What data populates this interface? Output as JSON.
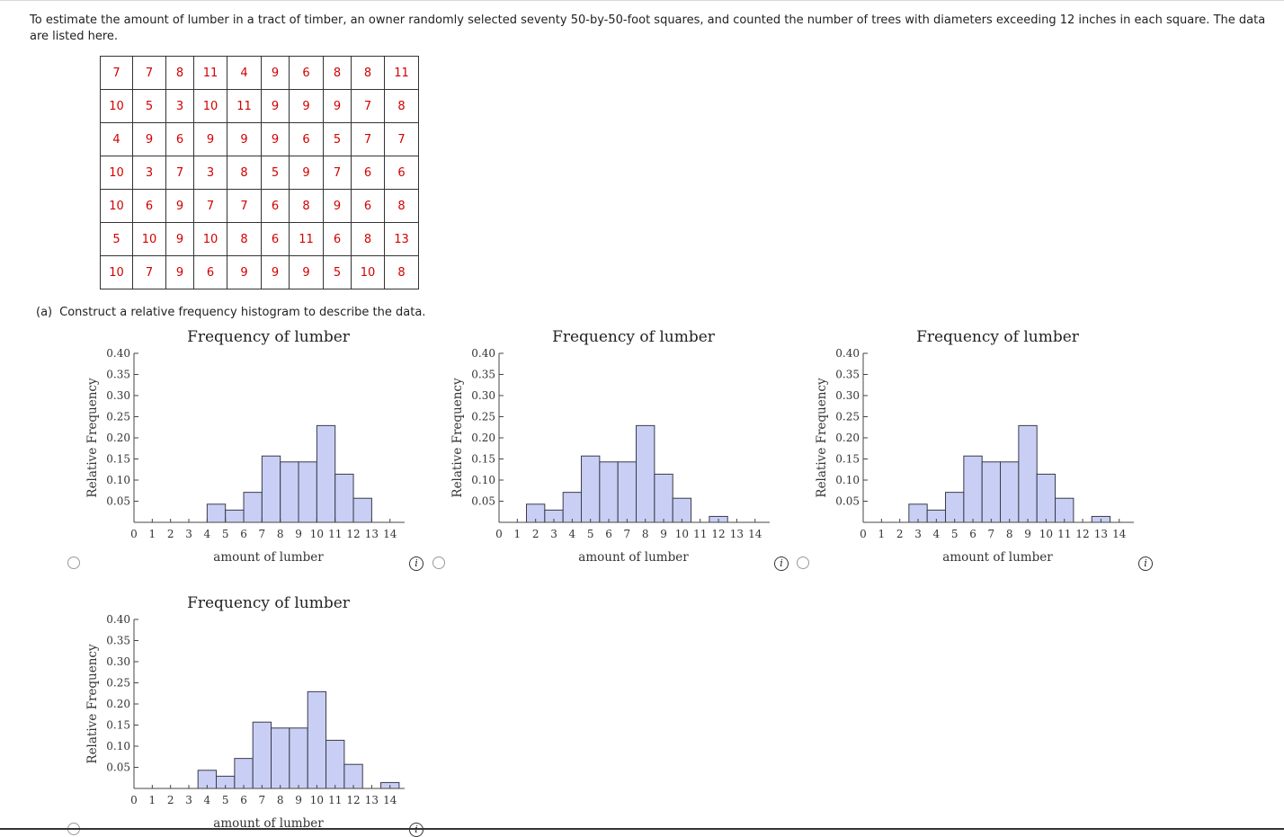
{
  "problem": {
    "intro": "To estimate the amount of lumber in a tract of timber, an owner randomly selected seventy 50-by-50-foot squares, and counted the number of trees with diameters exceeding 12 inches in each square. The data are listed here.",
    "table": [
      [
        "7",
        "7",
        "8",
        "11",
        "4",
        "9",
        "6",
        "8",
        "8",
        "11"
      ],
      [
        "10",
        "5",
        "3",
        "10",
        "11",
        "9",
        "9",
        "9",
        "7",
        "8"
      ],
      [
        "4",
        "9",
        "6",
        "9",
        "9",
        "9",
        "6",
        "5",
        "7",
        "7"
      ],
      [
        "10",
        "3",
        "7",
        "3",
        "8",
        "5",
        "9",
        "7",
        "6",
        "6"
      ],
      [
        "10",
        "6",
        "9",
        "7",
        "7",
        "6",
        "8",
        "9",
        "6",
        "8"
      ],
      [
        "5",
        "10",
        "9",
        "10",
        "8",
        "6",
        "11",
        "6",
        "8",
        "13"
      ],
      [
        "10",
        "7",
        "9",
        "6",
        "9",
        "9",
        "9",
        "5",
        "10",
        "8"
      ]
    ],
    "data_color": "#d30000"
  },
  "part_a": {
    "label": "(a)",
    "prompt": "Construct a relative frequency histogram to describe the data."
  },
  "options": [
    {
      "title": "Frequency of lumber",
      "xlabel": "amount of lumber",
      "ylabel": "Relative Frequency",
      "info_icon": "info-icon",
      "selected": false
    },
    {
      "title": "Frequency of lumber",
      "xlabel": "amount of lumber",
      "ylabel": "Relative Frequency",
      "info_icon": "info-icon",
      "selected": false
    },
    {
      "title": "Frequency of lumber",
      "xlabel": "amount of lumber",
      "ylabel": "Relative Frequency",
      "info_icon": "info-icon",
      "selected": false
    },
    {
      "title": "Frequency of lumber",
      "xlabel": "amount of lumber",
      "ylabel": "Relative Frequency",
      "info_icon": "info-icon",
      "selected": false
    }
  ],
  "chart_data": [
    {
      "type": "bar",
      "title": "Frequency of lumber",
      "xlabel": "amount of lumber",
      "ylabel": "Relative Frequency",
      "xlim": [
        0,
        14.8
      ],
      "ylim": [
        0,
        0.4
      ],
      "xticks": [
        0,
        1,
        2,
        3,
        4,
        5,
        6,
        7,
        8,
        9,
        10,
        11,
        12,
        13,
        14
      ],
      "yticks": [
        0.05,
        0.1,
        0.15,
        0.2,
        0.25,
        0.3,
        0.35,
        0.4
      ],
      "ytick_labels": [
        "0.05",
        "0.10",
        "0.15",
        "0.20",
        "0.25",
        "0.30",
        "0.35",
        "0.40"
      ],
      "bins": [
        4,
        5,
        6,
        7,
        8,
        9,
        10,
        11,
        12,
        13
      ],
      "values": [
        0.043,
        0.029,
        0.071,
        0.157,
        0.143,
        0.143,
        0.229,
        0.114,
        0.057,
        0
      ]
    },
    {
      "type": "bar",
      "title": "Frequency of lumber",
      "xlabel": "amount of lumber",
      "ylabel": "Relative Frequency",
      "xlim": [
        0,
        14.8
      ],
      "ylim": [
        0,
        0.4
      ],
      "xticks": [
        0,
        1,
        2,
        3,
        4,
        5,
        6,
        7,
        8,
        9,
        10,
        11,
        12,
        13,
        14
      ],
      "yticks": [
        0.05,
        0.1,
        0.15,
        0.2,
        0.25,
        0.3,
        0.35,
        0.4
      ],
      "ytick_labels": [
        "0.05",
        "0.10",
        "0.15",
        "0.20",
        "0.25",
        "0.30",
        "0.35",
        "0.40"
      ],
      "bins": [
        1.5,
        2.5,
        3.5,
        4.5,
        5.5,
        6.5,
        7.5,
        8.5,
        9.5,
        10.5,
        11.5
      ],
      "values": [
        0.043,
        0.029,
        0.071,
        0.157,
        0.143,
        0.143,
        0.229,
        0.114,
        0.057,
        0,
        0.014
      ]
    },
    {
      "type": "bar",
      "title": "Frequency of lumber",
      "xlabel": "amount of lumber",
      "ylabel": "Relative Frequency",
      "xlim": [
        0,
        14.8
      ],
      "ylim": [
        0,
        0.4
      ],
      "xticks": [
        0,
        1,
        2,
        3,
        4,
        5,
        6,
        7,
        8,
        9,
        10,
        11,
        12,
        13,
        14
      ],
      "yticks": [
        0.05,
        0.1,
        0.15,
        0.2,
        0.25,
        0.3,
        0.35,
        0.4
      ],
      "ytick_labels": [
        "0.05",
        "0.10",
        "0.15",
        "0.20",
        "0.25",
        "0.30",
        "0.35",
        "0.40"
      ],
      "bins": [
        2.5,
        3.5,
        4.5,
        5.5,
        6.5,
        7.5,
        8.5,
        9.5,
        10.5,
        11.5,
        12.5
      ],
      "values": [
        0.043,
        0.029,
        0.071,
        0.157,
        0.143,
        0.143,
        0.229,
        0.114,
        0.057,
        0,
        0.014
      ]
    },
    {
      "type": "bar",
      "title": "Frequency of lumber",
      "xlabel": "amount of lumber",
      "ylabel": "Relative Frequency",
      "xlim": [
        0,
        14.8
      ],
      "ylim": [
        0,
        0.4
      ],
      "xticks": [
        0,
        1,
        2,
        3,
        4,
        5,
        6,
        7,
        8,
        9,
        10,
        11,
        12,
        13,
        14
      ],
      "yticks": [
        0.05,
        0.1,
        0.15,
        0.2,
        0.25,
        0.3,
        0.35,
        0.4
      ],
      "ytick_labels": [
        "0.05",
        "0.10",
        "0.15",
        "0.20",
        "0.25",
        "0.30",
        "0.35",
        "0.40"
      ],
      "bins": [
        3.5,
        4.5,
        5.5,
        6.5,
        7.5,
        8.5,
        9.5,
        10.5,
        11.5,
        12.5,
        13.5
      ],
      "values": [
        0.043,
        0.029,
        0.071,
        0.157,
        0.143,
        0.143,
        0.229,
        0.114,
        0.057,
        0,
        0.014
      ]
    }
  ]
}
